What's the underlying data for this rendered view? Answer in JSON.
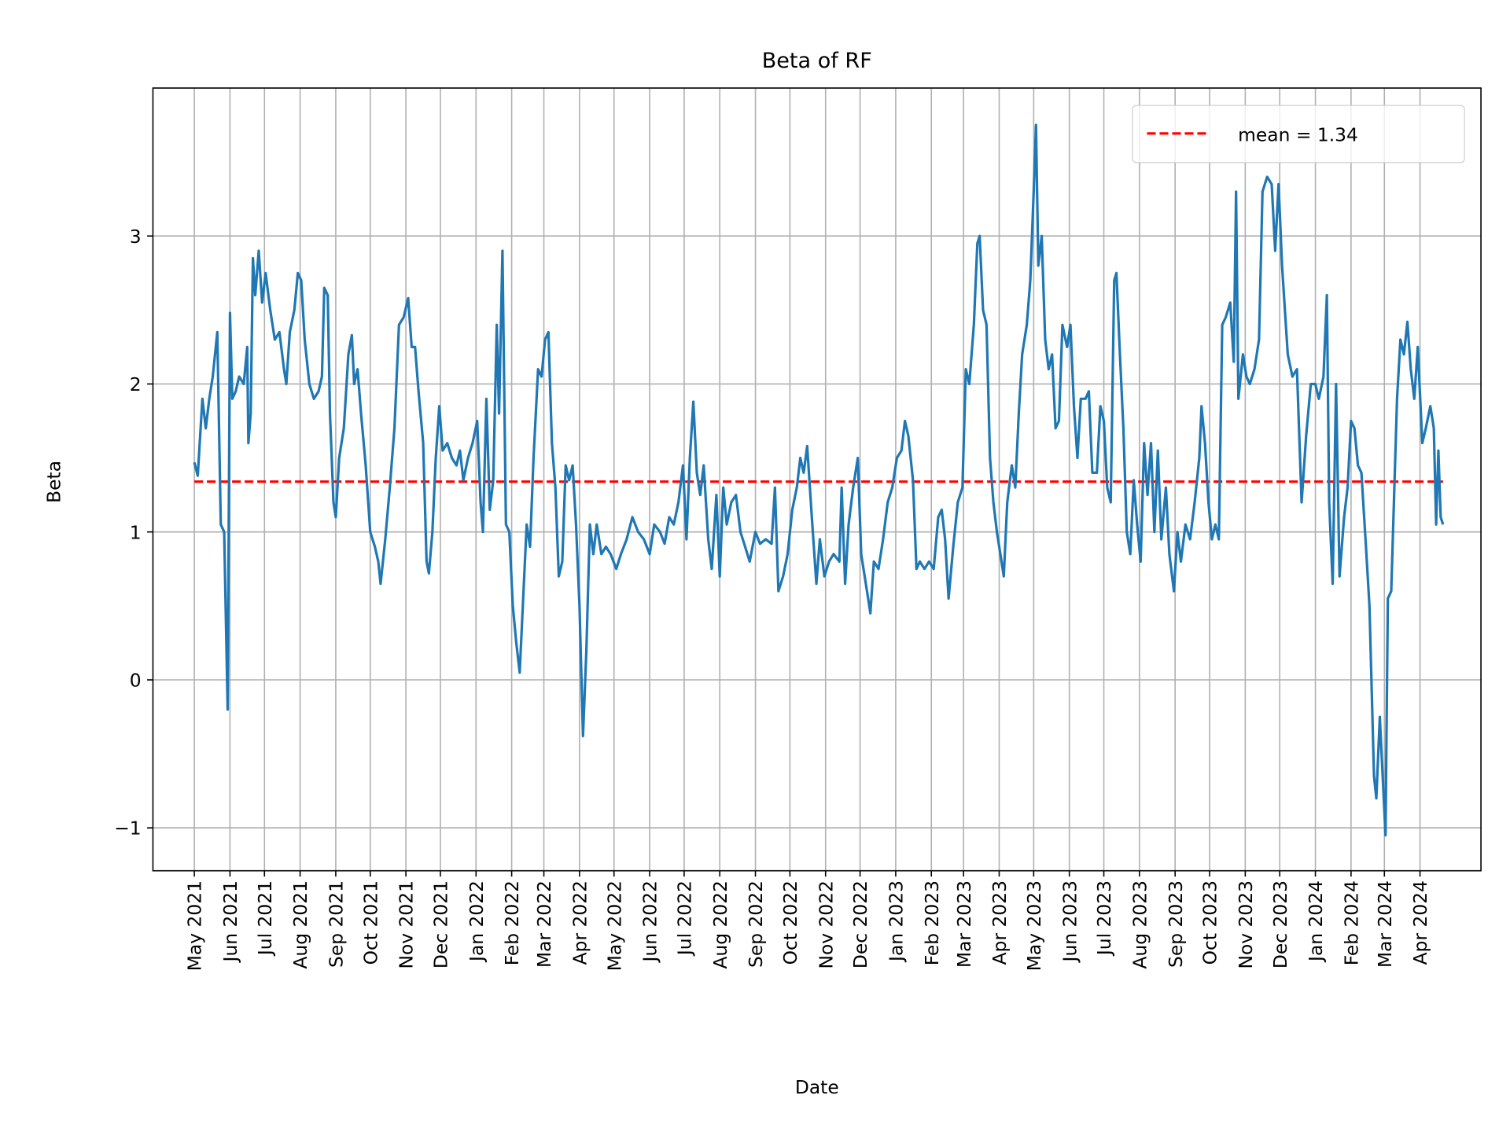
{
  "chart_data": {
    "type": "line",
    "title": "Beta of RF",
    "xlabel": "Date",
    "ylabel": "Beta",
    "ylim": [
      -1.29,
      4.0
    ],
    "xlim": [
      "2021-03-26",
      "2024-05-24"
    ],
    "grid": true,
    "legend_position": "top-right",
    "colors": {
      "series": "#1f77b4",
      "mean": "#ff0000",
      "grid": "#b0b0b0"
    },
    "yticks": [
      -1,
      0,
      1,
      2,
      3
    ],
    "ytick_labels": [
      "−1",
      "0",
      "1",
      "2",
      "3"
    ],
    "xticks": [
      "2021-05-01",
      "2021-06-01",
      "2021-07-01",
      "2021-08-01",
      "2021-09-01",
      "2021-10-01",
      "2021-11-01",
      "2021-12-01",
      "2022-01-01",
      "2022-02-01",
      "2022-03-01",
      "2022-04-01",
      "2022-05-01",
      "2022-06-01",
      "2022-07-01",
      "2022-08-01",
      "2022-09-01",
      "2022-10-01",
      "2022-11-01",
      "2022-12-01",
      "2023-01-01",
      "2023-02-01",
      "2023-03-01",
      "2023-04-01",
      "2023-05-01",
      "2023-06-01",
      "2023-07-01",
      "2023-08-01",
      "2023-09-01",
      "2023-10-01",
      "2023-11-01",
      "2023-12-01",
      "2024-01-01",
      "2024-02-01",
      "2024-03-01",
      "2024-04-01"
    ],
    "xtick_labels": [
      "May 2021",
      "Jun 2021",
      "Jul 2021",
      "Aug 2021",
      "Sep 2021",
      "Oct 2021",
      "Nov 2021",
      "Dec 2021",
      "Jan 2022",
      "Feb 2022",
      "Mar 2022",
      "Apr 2022",
      "May 2022",
      "Jun 2022",
      "Jul 2022",
      "Aug 2022",
      "Sep 2022",
      "Oct 2022",
      "Nov 2022",
      "Dec 2022",
      "Jan 2023",
      "Feb 2023",
      "Mar 2023",
      "Apr 2023",
      "May 2023",
      "Jun 2023",
      "Jul 2023",
      "Aug 2023",
      "Sep 2023",
      "Oct 2023",
      "Nov 2023",
      "Dec 2023",
      "Jan 2024",
      "Feb 2024",
      "Mar 2024",
      "Apr 2024"
    ],
    "mean": {
      "value": 1.34,
      "label": "mean = 1.34",
      "style": "dashed"
    },
    "series": [
      {
        "x": [
          "2021-05-01",
          "2021-05-04",
          "2021-05-08",
          "2021-05-11",
          "2021-05-14",
          "2021-05-17",
          "2021-05-21",
          "2021-05-24",
          "2021-05-27",
          "2021-05-30",
          "2021-06-01",
          "2021-06-03",
          "2021-06-06",
          "2021-06-09",
          "2021-06-13",
          "2021-06-16",
          "2021-06-17",
          "2021-06-19",
          "2021-06-21",
          "2021-06-23",
          "2021-06-26",
          "2021-06-29",
          "2021-07-02",
          "2021-07-06",
          "2021-07-10",
          "2021-07-14",
          "2021-07-18",
          "2021-07-20",
          "2021-07-23",
          "2021-07-27",
          "2021-07-30",
          "2021-08-02",
          "2021-08-05",
          "2021-08-09",
          "2021-08-13",
          "2021-08-17",
          "2021-08-20",
          "2021-08-22",
          "2021-08-25",
          "2021-08-27",
          "2021-08-30",
          "2021-09-01",
          "2021-09-04",
          "2021-09-08",
          "2021-09-12",
          "2021-09-15",
          "2021-09-17",
          "2021-09-20",
          "2021-09-23",
          "2021-09-27",
          "2021-10-01",
          "2021-10-05",
          "2021-10-08",
          "2021-10-10",
          "2021-10-14",
          "2021-10-18",
          "2021-10-22",
          "2021-10-26",
          "2021-10-30",
          "2021-11-03",
          "2021-11-06",
          "2021-11-09",
          "2021-11-12",
          "2021-11-16",
          "2021-11-19",
          "2021-11-21",
          "2021-11-24",
          "2021-11-27",
          "2021-11-30",
          "2021-12-03",
          "2021-12-07",
          "2021-12-11",
          "2021-12-15",
          "2021-12-18",
          "2021-12-21",
          "2021-12-25",
          "2021-12-29",
          "2022-01-02",
          "2022-01-05",
          "2022-01-07",
          "2022-01-10",
          "2022-01-13",
          "2022-01-16",
          "2022-01-19",
          "2022-01-21",
          "2022-01-24",
          "2022-01-27",
          "2022-01-30",
          "2022-02-02",
          "2022-02-05",
          "2022-02-08",
          "2022-02-11",
          "2022-02-14",
          "2022-02-17",
          "2022-02-20",
          "2022-02-24",
          "2022-02-27",
          "2022-03-02",
          "2022-03-05",
          "2022-03-08",
          "2022-03-11",
          "2022-03-14",
          "2022-03-17",
          "2022-03-20",
          "2022-03-23",
          "2022-03-26",
          "2022-03-29",
          "2022-04-01",
          "2022-04-04",
          "2022-04-07",
          "2022-04-10",
          "2022-04-13",
          "2022-04-16",
          "2022-04-20",
          "2022-04-24",
          "2022-04-28",
          "2022-05-03",
          "2022-05-07",
          "2022-05-12",
          "2022-05-17",
          "2022-05-22",
          "2022-05-27",
          "2022-06-01",
          "2022-06-05",
          "2022-06-10",
          "2022-06-14",
          "2022-06-18",
          "2022-06-22",
          "2022-06-26",
          "2022-06-30",
          "2022-07-03",
          "2022-07-06",
          "2022-07-09",
          "2022-07-12",
          "2022-07-15",
          "2022-07-18",
          "2022-07-22",
          "2022-07-25",
          "2022-07-29",
          "2022-08-01",
          "2022-08-04",
          "2022-08-07",
          "2022-08-11",
          "2022-08-15",
          "2022-08-19",
          "2022-08-23",
          "2022-08-27",
          "2022-09-01",
          "2022-09-05",
          "2022-09-10",
          "2022-09-15",
          "2022-09-18",
          "2022-09-21",
          "2022-09-25",
          "2022-09-29",
          "2022-10-03",
          "2022-10-07",
          "2022-10-10",
          "2022-10-13",
          "2022-10-16",
          "2022-10-20",
          "2022-10-24",
          "2022-10-27",
          "2022-10-31",
          "2022-11-04",
          "2022-11-08",
          "2022-11-13",
          "2022-11-15",
          "2022-11-18",
          "2022-11-21",
          "2022-11-25",
          "2022-11-29",
          "2022-12-02",
          "2022-12-05",
          "2022-12-08",
          "2022-12-10",
          "2022-12-13",
          "2022-12-17",
          "2022-12-21",
          "2022-12-25",
          "2022-12-29",
          "2023-01-02",
          "2023-01-06",
          "2023-01-09",
          "2023-01-12",
          "2023-01-16",
          "2023-01-19",
          "2023-01-22",
          "2023-01-26",
          "2023-01-30",
          "2023-02-03",
          "2023-02-07",
          "2023-02-10",
          "2023-02-13",
          "2023-02-16",
          "2023-02-20",
          "2023-02-24",
          "2023-02-28",
          "2023-03-03",
          "2023-03-06",
          "2023-03-10",
          "2023-03-13",
          "2023-03-15",
          "2023-03-18",
          "2023-03-21",
          "2023-03-24",
          "2023-03-27",
          "2023-03-30",
          "2023-04-02",
          "2023-04-05",
          "2023-04-08",
          "2023-04-12",
          "2023-04-15",
          "2023-04-18",
          "2023-04-21",
          "2023-04-25",
          "2023-04-28",
          "2023-05-01",
          "2023-05-03",
          "2023-05-05",
          "2023-05-08",
          "2023-05-11",
          "2023-05-14",
          "2023-05-17",
          "2023-05-20",
          "2023-05-23",
          "2023-05-26",
          "2023-05-30",
          "2023-06-02",
          "2023-06-05",
          "2023-06-08",
          "2023-06-11",
          "2023-06-15",
          "2023-06-18",
          "2023-06-21",
          "2023-06-25",
          "2023-06-28",
          "2023-07-01",
          "2023-07-04",
          "2023-07-07",
          "2023-07-10",
          "2023-07-12",
          "2023-07-15",
          "2023-07-18",
          "2023-07-21",
          "2023-07-24",
          "2023-07-27",
          "2023-07-30",
          "2023-08-02",
          "2023-08-05",
          "2023-08-08",
          "2023-08-11",
          "2023-08-14",
          "2023-08-17",
          "2023-08-20",
          "2023-08-24",
          "2023-08-27",
          "2023-08-31",
          "2023-09-03",
          "2023-09-06",
          "2023-09-10",
          "2023-09-14",
          "2023-09-18",
          "2023-09-22",
          "2023-09-24",
          "2023-09-27",
          "2023-09-30",
          "2023-10-03",
          "2023-10-06",
          "2023-10-09",
          "2023-10-12",
          "2023-10-15",
          "2023-10-19",
          "2023-10-22",
          "2023-10-24",
          "2023-10-26",
          "2023-10-30",
          "2023-11-02",
          "2023-11-05",
          "2023-11-09",
          "2023-11-13",
          "2023-11-16",
          "2023-11-20",
          "2023-11-24",
          "2023-11-27",
          "2023-11-30",
          "2023-12-03",
          "2023-12-08",
          "2023-12-12",
          "2023-12-16",
          "2023-12-20",
          "2023-12-24",
          "2023-12-28",
          "2024-01-01",
          "2024-01-04",
          "2024-01-08",
          "2024-01-11",
          "2024-01-13",
          "2024-01-16",
          "2024-01-19",
          "2024-01-22",
          "2024-01-26",
          "2024-01-29",
          "2024-02-01",
          "2024-02-04",
          "2024-02-07",
          "2024-02-10",
          "2024-02-14",
          "2024-02-17",
          "2024-02-21",
          "2024-02-23",
          "2024-02-26",
          "2024-03-02",
          "2024-03-04",
          "2024-03-07",
          "2024-03-12",
          "2024-03-15",
          "2024-03-18",
          "2024-03-21",
          "2024-03-24",
          "2024-03-27",
          "2024-03-30",
          "2024-04-03",
          "2024-04-06",
          "2024-04-10",
          "2024-04-13",
          "2024-04-15",
          "2024-04-17",
          "2024-04-19",
          "2024-04-21"
        ],
        "y": [
          1.47,
          1.38,
          1.9,
          1.7,
          1.9,
          2.05,
          2.35,
          1.05,
          1.0,
          -0.2,
          2.48,
          1.9,
          1.95,
          2.05,
          2.0,
          2.25,
          1.6,
          1.8,
          2.85,
          2.6,
          2.9,
          2.55,
          2.75,
          2.5,
          2.3,
          2.35,
          2.1,
          2.0,
          2.35,
          2.5,
          2.75,
          2.7,
          2.3,
          2.0,
          1.9,
          1.95,
          2.05,
          2.65,
          2.6,
          1.8,
          1.2,
          1.1,
          1.5,
          1.7,
          2.2,
          2.33,
          2.0,
          2.1,
          1.8,
          1.45,
          1.0,
          0.9,
          0.8,
          0.65,
          0.95,
          1.3,
          1.7,
          2.4,
          2.45,
          2.58,
          2.25,
          2.25,
          1.95,
          1.6,
          0.8,
          0.72,
          1.0,
          1.5,
          1.85,
          1.55,
          1.6,
          1.5,
          1.45,
          1.55,
          1.35,
          1.5,
          1.6,
          1.75,
          1.2,
          1.0,
          1.9,
          1.15,
          1.35,
          2.4,
          1.8,
          2.9,
          1.05,
          1.0,
          0.5,
          0.25,
          0.05,
          0.55,
          1.05,
          0.9,
          1.5,
          2.1,
          2.05,
          2.3,
          2.35,
          1.6,
          1.3,
          0.7,
          0.8,
          1.45,
          1.35,
          1.45,
          1.05,
          0.5,
          -0.38,
          0.2,
          1.05,
          0.85,
          1.05,
          0.85,
          0.9,
          0.85,
          0.75,
          0.85,
          0.95,
          1.1,
          1.0,
          0.95,
          0.85,
          1.05,
          1.0,
          0.92,
          1.1,
          1.05,
          1.2,
          1.45,
          0.95,
          1.5,
          1.88,
          1.4,
          1.25,
          1.45,
          0.95,
          0.75,
          1.25,
          0.7,
          1.3,
          1.05,
          1.2,
          1.25,
          1.0,
          0.9,
          0.8,
          1.0,
          0.92,
          0.95,
          0.92,
          1.3,
          0.6,
          0.7,
          0.85,
          1.15,
          1.3,
          1.5,
          1.4,
          1.58,
          1.1,
          0.65,
          0.95,
          0.7,
          0.8,
          0.85,
          0.8,
          1.3,
          0.65,
          1.05,
          1.3,
          1.5,
          0.85,
          0.7,
          0.55,
          0.45,
          0.8,
          0.75,
          0.95,
          1.2,
          1.3,
          1.5,
          1.55,
          1.75,
          1.65,
          1.35,
          0.75,
          0.8,
          0.75,
          0.8,
          0.75,
          1.1,
          1.15,
          0.95,
          0.55,
          0.9,
          1.2,
          1.3,
          2.1,
          2.0,
          2.4,
          2.95,
          3.0,
          2.5,
          2.4,
          1.5,
          1.2,
          1.0,
          0.85,
          0.7,
          1.2,
          1.45,
          1.3,
          1.8,
          2.2,
          2.4,
          2.7,
          3.3,
          3.75,
          2.8,
          3.0,
          2.3,
          2.1,
          2.2,
          1.7,
          1.75,
          2.4,
          2.25,
          2.4,
          1.85,
          1.5,
          1.9,
          1.9,
          1.95,
          1.4,
          1.4,
          1.85,
          1.75,
          1.3,
          1.2,
          2.7,
          2.75,
          2.2,
          1.7,
          1.0,
          0.85,
          1.35,
          1.05,
          0.8,
          1.6,
          1.25,
          1.6,
          1.0,
          1.55,
          0.95,
          1.3,
          0.85,
          0.6,
          1.0,
          0.8,
          1.05,
          0.95,
          1.2,
          1.5,
          1.85,
          1.6,
          1.2,
          0.95,
          1.05,
          0.95,
          2.4,
          2.45,
          2.55,
          2.15,
          3.3,
          1.9,
          2.2,
          2.05,
          2.0,
          2.1,
          2.3,
          3.3,
          3.4,
          3.35,
          2.9,
          3.35,
          2.8,
          2.2,
          2.05,
          2.1,
          1.2,
          1.65,
          2.0,
          2.0,
          1.9,
          2.05,
          2.6,
          1.2,
          0.65,
          2.0,
          0.7,
          1.1,
          1.3,
          1.75,
          1.7,
          1.45,
          1.4,
          0.9,
          0.5,
          -0.65,
          -0.8,
          -0.25,
          -1.05,
          0.55,
          0.6,
          1.9,
          2.3,
          2.2,
          2.42,
          2.1,
          1.9,
          2.25,
          1.6,
          1.7,
          1.85,
          1.7,
          1.05,
          1.55,
          1.1,
          1.05
        ]
      }
    ]
  }
}
